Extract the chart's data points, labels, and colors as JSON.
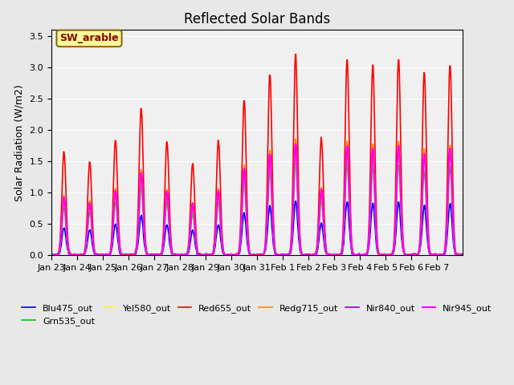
{
  "title": "Reflected Solar Bands",
  "ylabel": "Solar Radiation (W/m2)",
  "xlabel": "",
  "annotation": "SW_arable",
  "annotation_color": "#8B0000",
  "annotation_bg": "#FFFF99",
  "ylim": [
    0,
    3.6
  ],
  "yticks": [
    0.0,
    0.5,
    1.0,
    1.5,
    2.0,
    2.5,
    3.0,
    3.5
  ],
  "series": {
    "Blu475_out": {
      "color": "#0000FF",
      "lw": 1.2
    },
    "Grn535_out": {
      "color": "#00CC00",
      "lw": 1.2
    },
    "Yel580_out": {
      "color": "#FFFF00",
      "lw": 1.2
    },
    "Red655_out": {
      "color": "#FF0000",
      "lw": 1.2
    },
    "Redg715_out": {
      "color": "#FF8800",
      "lw": 1.2
    },
    "Nir840_out": {
      "color": "#9900CC",
      "lw": 1.2
    },
    "Nir945_out": {
      "color": "#FF00FF",
      "lw": 1.5
    }
  },
  "bg_color": "#e8e8e8",
  "axes_bg": "#f0f0f0",
  "n_days": 16,
  "samples_per_day": 48,
  "peak_heights": [
    1.65,
    1.5,
    1.85,
    2.37,
    1.83,
    1.47,
    1.84,
    2.49,
    2.91,
    3.22,
    1.88,
    3.15,
    3.06,
    3.15,
    2.93,
    3.06
  ],
  "tick_labels": [
    "Jan 23",
    "Jan 24",
    "Jan 25",
    "Jan 26",
    "Jan 27",
    "Jan 28",
    "Jan 29",
    "Jan 30",
    "Jan 31",
    "Feb 1",
    "Feb 2",
    "Feb 3",
    "Feb 4",
    "Feb 5",
    "Feb 6",
    "Feb 7"
  ]
}
